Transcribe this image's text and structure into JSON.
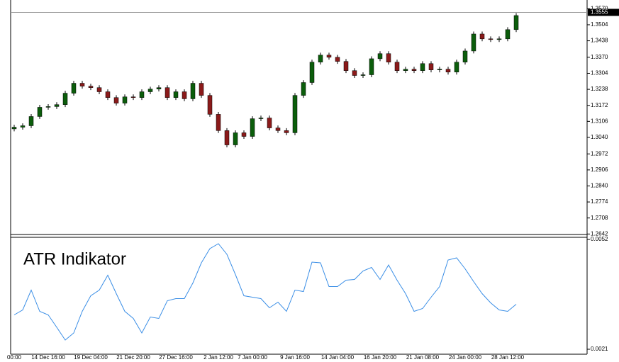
{
  "chart_data": [
    {
      "type": "candlestick",
      "up_color": "#0b5d0b",
      "down_color": "#8b1a1a",
      "categories": [
        "00:00",
        null,
        null,
        null,
        "14 Dec 16:00",
        null,
        null,
        null,
        null,
        "19 Dec 04:00",
        null,
        null,
        null,
        null,
        "21 Dec 20:00",
        null,
        null,
        null,
        null,
        "27 Dec 16:00",
        null,
        null,
        null,
        null,
        "2 Jan 12:00",
        null,
        null,
        null,
        "7 Jan 00:00",
        null,
        null,
        null,
        null,
        "9 Jan 16:00",
        null,
        null,
        null,
        null,
        "14 Jan 04:00",
        null,
        null,
        null,
        null,
        "16 Jan 20:00",
        null,
        null,
        null,
        null,
        "21 Jan 08:00",
        null,
        null,
        null,
        null,
        "24 Jan 00:00",
        null,
        null,
        null,
        null,
        "28 Jan 12:00",
        null
      ],
      "open": [
        1.3075,
        1.3082,
        1.3088,
        1.3126,
        1.3164,
        1.3167,
        1.3175,
        1.3222,
        1.3263,
        1.3251,
        1.3245,
        1.3228,
        1.3204,
        1.3181,
        1.3207,
        1.3204,
        1.3228,
        1.3239,
        1.3245,
        1.3204,
        1.3228,
        1.3199,
        1.3263,
        1.3213,
        1.3135,
        1.3068,
        1.3009,
        1.3059,
        1.3044,
        1.3117,
        1.312,
        1.3079,
        1.3068,
        1.3059,
        1.3213,
        1.3266,
        1.335,
        1.3379,
        1.337,
        1.3353,
        1.3315,
        1.3295,
        1.3298,
        1.3364,
        1.3385,
        1.335,
        1.3315,
        1.3321,
        1.3315,
        1.3344,
        1.3318,
        1.3321,
        1.3309,
        1.335,
        1.3396,
        1.3466,
        1.3446,
        1.3443,
        1.3446,
        1.3484
      ],
      "high": [
        1.3092,
        1.3098,
        1.3136,
        1.3174,
        1.3177,
        1.3185,
        1.3232,
        1.3273,
        1.3273,
        1.3261,
        1.3255,
        1.3238,
        1.3214,
        1.3217,
        1.3217,
        1.3238,
        1.3249,
        1.3255,
        1.3255,
        1.3238,
        1.3238,
        1.3273,
        1.3273,
        1.3223,
        1.3145,
        1.3078,
        1.3069,
        1.3069,
        1.3127,
        1.313,
        1.313,
        1.3089,
        1.3078,
        1.3223,
        1.3276,
        1.336,
        1.3389,
        1.3389,
        1.338,
        1.3363,
        1.3325,
        1.3308,
        1.3374,
        1.3395,
        1.3395,
        1.336,
        1.3331,
        1.3331,
        1.3354,
        1.3354,
        1.3331,
        1.3331,
        1.336,
        1.3406,
        1.3476,
        1.3476,
        1.3456,
        1.3456,
        1.3494,
        1.3552
      ],
      "low": [
        1.3065,
        1.3072,
        1.3078,
        1.3116,
        1.3154,
        1.3157,
        1.3165,
        1.3212,
        1.3241,
        1.3235,
        1.3218,
        1.3194,
        1.3171,
        1.3171,
        1.3194,
        1.3194,
        1.3218,
        1.3229,
        1.3194,
        1.3194,
        1.3189,
        1.3189,
        1.3203,
        1.3125,
        1.3058,
        1.2999,
        1.2999,
        1.3034,
        1.3034,
        1.3107,
        1.3069,
        1.3058,
        1.3049,
        1.3049,
        1.3203,
        1.3256,
        1.334,
        1.336,
        1.3343,
        1.3305,
        1.3285,
        1.3285,
        1.3288,
        1.3354,
        1.334,
        1.3305,
        1.3305,
        1.3305,
        1.3305,
        1.3308,
        1.3308,
        1.3299,
        1.3299,
        1.334,
        1.3386,
        1.3436,
        1.3433,
        1.3433,
        1.3436,
        1.3474
      ],
      "close": [
        1.3082,
        1.3088,
        1.3126,
        1.3164,
        1.3167,
        1.3175,
        1.3222,
        1.3263,
        1.3251,
        1.3245,
        1.3228,
        1.3204,
        1.3181,
        1.3207,
        1.3204,
        1.3228,
        1.3239,
        1.3245,
        1.3204,
        1.3228,
        1.3199,
        1.3263,
        1.3213,
        1.3135,
        1.3068,
        1.3009,
        1.3059,
        1.3044,
        1.3117,
        1.312,
        1.3079,
        1.3068,
        1.3059,
        1.3213,
        1.3266,
        1.335,
        1.3379,
        1.337,
        1.3353,
        1.3315,
        1.3295,
        1.3298,
        1.3364,
        1.3385,
        1.335,
        1.3315,
        1.3321,
        1.3315,
        1.3344,
        1.3318,
        1.3321,
        1.3309,
        1.335,
        1.3396,
        1.3466,
        1.3446,
        1.3443,
        1.3446,
        1.3484,
        1.3542
      ],
      "current_price": 1.3555,
      "ylim": [
        1.264,
        1.3606
      ],
      "yticks": [
        {
          "value": 1.357,
          "label": "1.3570"
        },
        1.3504,
        1.3438,
        {
          "value": 1.337,
          "label": "1.3370"
        },
        1.3304,
        1.3238,
        1.3172,
        1.3106,
        {
          "value": 1.304,
          "label": "1.3040"
        },
        1.2972,
        1.2906,
        {
          "value": 1.284,
          "label": "1.2840"
        },
        1.2774,
        1.2708,
        1.2642
      ]
    },
    {
      "type": "line",
      "title": "ATR Indikator",
      "color": "#3a8ee6",
      "values": [
        0.00307,
        0.00321,
        0.00377,
        0.00317,
        0.00307,
        0.00272,
        0.00236,
        0.00256,
        0.00317,
        0.00361,
        0.00377,
        0.00419,
        0.00367,
        0.00317,
        0.00297,
        0.00256,
        0.00301,
        0.00297,
        0.00347,
        0.00353,
        0.00353,
        0.00397,
        0.00454,
        0.00494,
        0.00508,
        0.00478,
        0.00421,
        0.00361,
        0.00357,
        0.00353,
        0.00327,
        0.00343,
        0.00317,
        0.00377,
        0.00373,
        0.00456,
        0.00454,
        0.00387,
        0.00387,
        0.00405,
        0.00407,
        0.00431,
        0.00441,
        0.00407,
        0.00448,
        0.00405,
        0.00367,
        0.00317,
        0.00325,
        0.00357,
        0.00387,
        0.00462,
        0.00468,
        0.00437,
        0.00401,
        0.00367,
        0.00341,
        0.00321,
        0.00317,
        0.00337
      ],
      "ylim": [
        0.00196,
        0.00526
      ],
      "yticks": [
        0.0052,
        0.0021
      ]
    }
  ]
}
